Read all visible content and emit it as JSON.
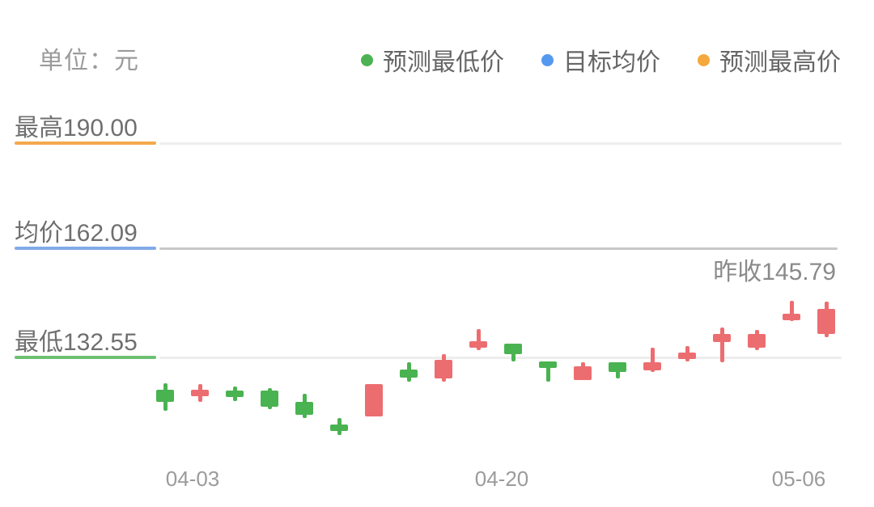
{
  "header": {
    "unit_label": "单位：元"
  },
  "legend": {
    "items": [
      {
        "label": "预测最低价",
        "color": "#4bb353"
      },
      {
        "label": "目标均价",
        "color": "#5598f0"
      },
      {
        "label": "预测最高价",
        "color": "#f5a83b"
      }
    ]
  },
  "chart_data": {
    "type": "candlestick",
    "unit": "元",
    "levels": [
      {
        "id": "forecast-high",
        "label": "最高190.00",
        "value": 190.0,
        "color": "#f3a94b"
      },
      {
        "id": "target-avg",
        "label": "均价162.09",
        "value": 162.09,
        "color": "#82aae8"
      },
      {
        "id": "forecast-low",
        "label": "最低132.55",
        "value": 132.55,
        "color": "#6dc071"
      }
    ],
    "prev_close": {
      "label": "昨收145.79",
      "value": 145.79
    },
    "x_ticks": [
      "04-03",
      "04-20",
      "05-06"
    ],
    "colors": {
      "up": "#4ab351",
      "down": "#ec6d70"
    },
    "ylim": [
      111.0,
      190.0
    ],
    "candles": [
      {
        "dir": "up",
        "o": 120.83,
        "c": 124.08,
        "h": 125.82,
        "l": 118.45
      },
      {
        "dir": "down",
        "o": 124.08,
        "c": 122.35,
        "h": 125.6,
        "l": 120.83
      },
      {
        "dir": "up",
        "o": 122.13,
        "c": 123.87,
        "h": 124.95,
        "l": 121.05
      },
      {
        "dir": "up",
        "o": 119.53,
        "c": 123.87,
        "h": 124.52,
        "l": 118.88
      },
      {
        "dir": "up",
        "o": 117.36,
        "c": 120.83,
        "h": 123.0,
        "l": 116.5
      },
      {
        "dir": "up",
        "o": 113.68,
        "c": 114.76,
        "h": 116.5,
        "l": 111.95
      },
      {
        "dir": "down",
        "o": 125.6,
        "c": 116.93,
        "h": 125.6,
        "l": 116.93
      },
      {
        "dir": "up",
        "o": 127.34,
        "c": 129.51,
        "h": 131.46,
        "l": 126.25
      },
      {
        "dir": "down",
        "o": 132.11,
        "c": 127.12,
        "h": 133.63,
        "l": 126.25
      },
      {
        "dir": "down",
        "o": 137.1,
        "c": 135.36,
        "h": 140.35,
        "l": 134.71
      },
      {
        "dir": "up",
        "o": 133.63,
        "c": 136.45,
        "h": 136.45,
        "l": 131.68
      },
      {
        "dir": "up",
        "o": 129.94,
        "c": 131.68,
        "h": 131.68,
        "l": 126.25
      },
      {
        "dir": "down",
        "o": 130.38,
        "c": 126.69,
        "h": 131.46,
        "l": 126.69
      },
      {
        "dir": "up",
        "o": 128.86,
        "c": 131.46,
        "h": 131.46,
        "l": 127.12
      },
      {
        "dir": "down",
        "o": 131.46,
        "c": 129.29,
        "h": 135.36,
        "l": 128.86
      },
      {
        "dir": "down",
        "o": 134.06,
        "c": 132.33,
        "h": 135.8,
        "l": 131.68
      },
      {
        "dir": "down",
        "o": 139.05,
        "c": 136.88,
        "h": 140.78,
        "l": 131.46
      },
      {
        "dir": "down",
        "o": 139.05,
        "c": 135.36,
        "h": 140.13,
        "l": 134.71
      },
      {
        "dir": "down",
        "o": 144.47,
        "c": 143.6,
        "h": 147.94,
        "l": 142.52
      },
      {
        "dir": "down",
        "o": 145.77,
        "c": 139.05,
        "h": 147.72,
        "l": 138.18
      }
    ]
  }
}
